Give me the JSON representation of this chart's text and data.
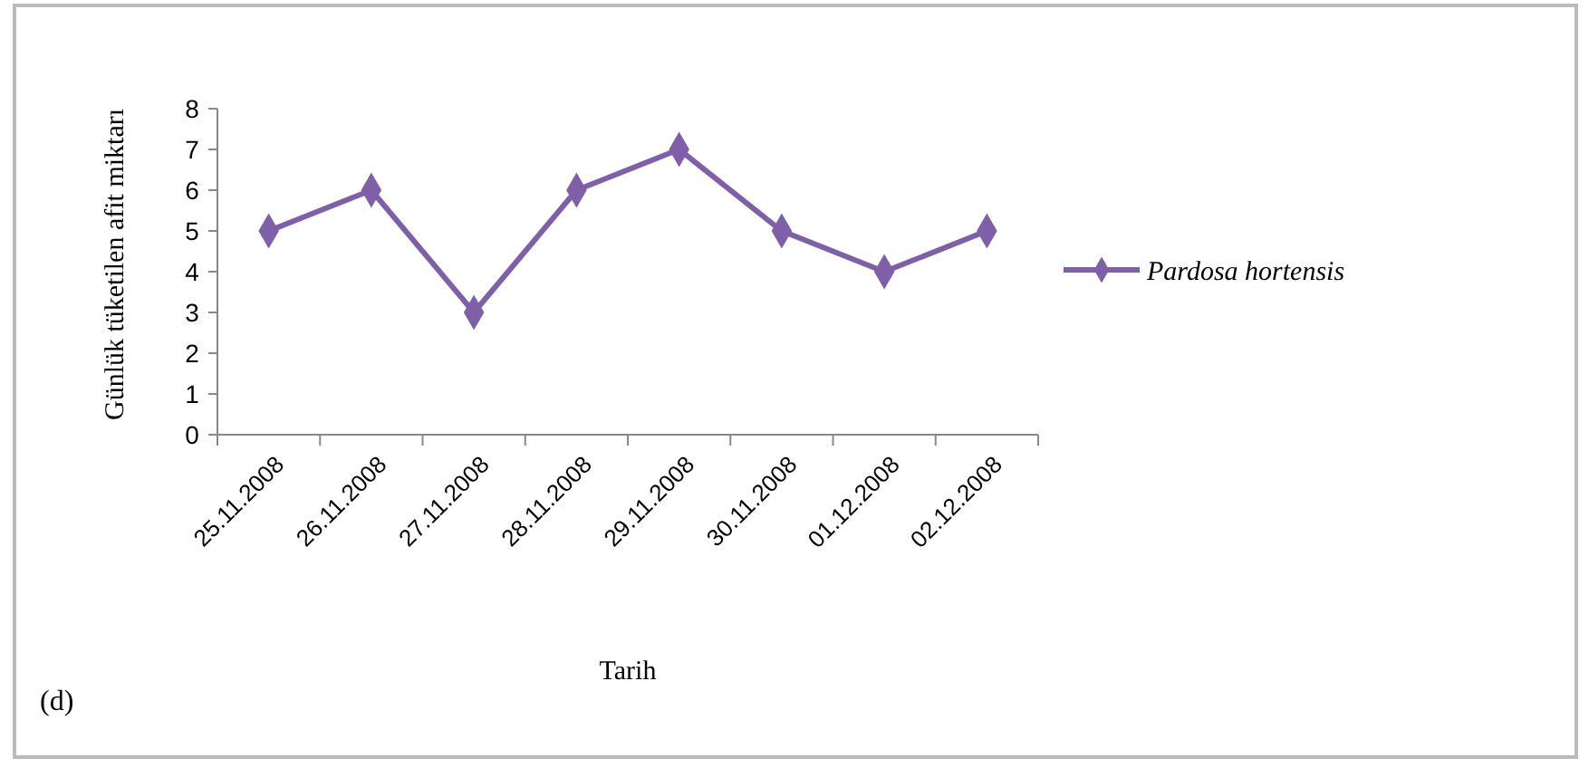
{
  "chart_data": {
    "type": "line",
    "xlabel": "Tarih",
    "ylabel": "Günlük tüketilen afit miktarı",
    "categories": [
      "25.11.2008",
      "26.11.2008",
      "27.11.2008",
      "28.11.2008",
      "29.11.2008",
      "30.11.2008",
      "01.12.2008",
      "02.12.2008"
    ],
    "series": [
      {
        "name": "Pardosa hortensis",
        "color": "#7f5fa8",
        "values": [
          5,
          6,
          3,
          6,
          7,
          5,
          4,
          5
        ]
      }
    ],
    "ylim": [
      0,
      8
    ],
    "yticks": [
      0,
      1,
      2,
      3,
      4,
      5,
      6,
      7,
      8
    ],
    "grid": false,
    "legend": "right",
    "marker": "diamond",
    "line_style": "solid",
    "annotations": [
      "(d)"
    ]
  }
}
